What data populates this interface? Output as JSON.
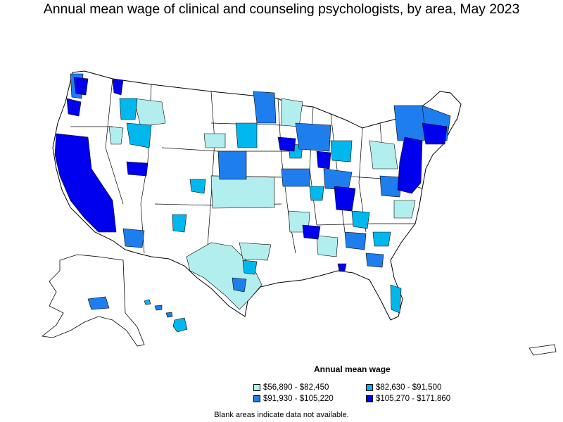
{
  "title": "Annual mean wage of clinical and counseling psychologists, by area, May 2023",
  "legend": {
    "title": "Annual mean wage",
    "items": [
      {
        "label": "$56,890 - $82,450",
        "color": "#b2eeee"
      },
      {
        "label": "$82,630 - $91,500",
        "color": "#00b8ee"
      },
      {
        "label": "$91,930 - $105,220",
        "color": "#1e7eee"
      },
      {
        "label": "$105,270 - $171,860",
        "color": "#0000ee"
      }
    ]
  },
  "footnote": "Blank areas indicate data not available.",
  "colors": {
    "tier1": "#b2eeee",
    "tier2": "#00b8ee",
    "tier3": "#1e7eee",
    "tier4": "#0000ee",
    "blank": "#ffffff",
    "border": "#000000"
  }
}
